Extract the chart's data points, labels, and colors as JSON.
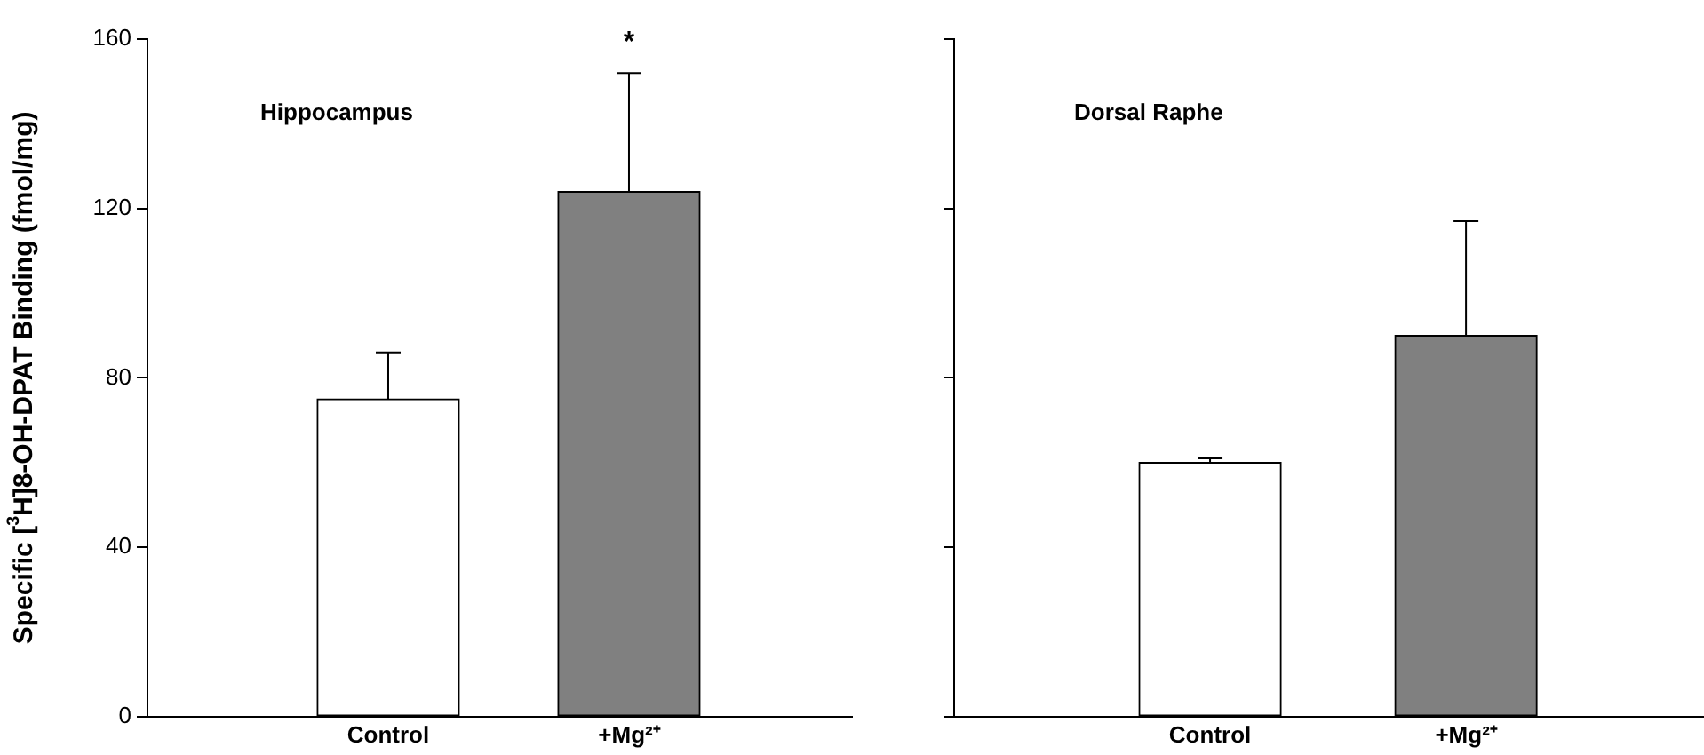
{
  "chart_data": [
    {
      "type": "bar",
      "title": "Hippocampus",
      "ylabel": "Specific [$^{3}$H]8-OH-DPAT Binding (fmol/mg)",
      "categories": [
        "Control",
        "+Mg²⁺"
      ],
      "values": [
        75,
        124
      ],
      "colors": [
        "#ffffff",
        "#808080"
      ],
      "errors": [
        [
          75,
          86
        ],
        [
          124,
          152
        ]
      ],
      "ylim": [
        0,
        160
      ],
      "yticks": [
        0,
        40,
        80,
        120,
        160
      ],
      "grid": false,
      "legend": false,
      "annotations": [
        "*"
      ]
    },
    {
      "type": "bar",
      "title": "Dorsal Raphe",
      "categories": [
        "Control",
        "+Mg²⁺"
      ],
      "values": [
        60,
        90
      ],
      "colors": [
        "#ffffff",
        "#808080"
      ],
      "errors": [
        [
          60,
          61
        ],
        [
          90,
          117
        ]
      ],
      "ylim": [
        0,
        160
      ],
      "yticks": [
        0,
        40,
        80,
        120,
        160
      ],
      "grid": false,
      "legend": false,
      "tick_labels": "x"
    }
  ]
}
